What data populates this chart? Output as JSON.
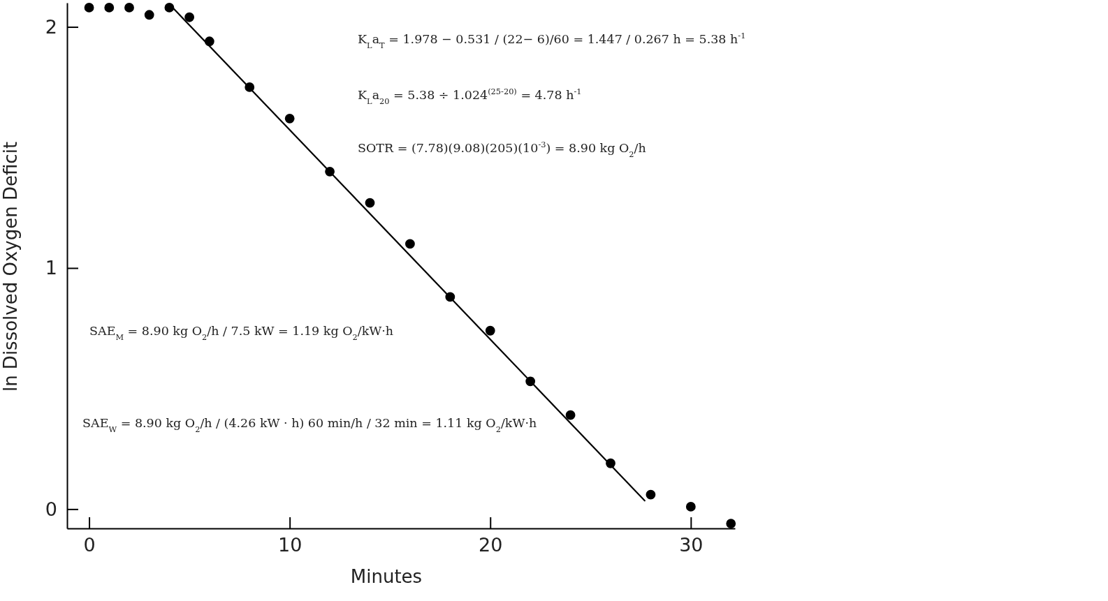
{
  "chart_data": {
    "type": "scatter",
    "xlabel": "Minutes",
    "ylabel": "ln Dissolved Oxygen Deficit",
    "xlim": [
      -1.1,
      32.2
    ],
    "ylim": [
      -0.08,
      2.1
    ],
    "xticks": [
      0,
      10,
      20,
      30
    ],
    "yticks": [
      0,
      1,
      2
    ],
    "series": [
      {
        "marker": "circle",
        "color": "#000000",
        "x": [
          0,
          1,
          2,
          3,
          4,
          5,
          6,
          8,
          10,
          12,
          14,
          16,
          18,
          20,
          22,
          24,
          26,
          28,
          30,
          32
        ],
        "values": [
          2.08,
          2.08,
          2.08,
          2.05,
          2.08,
          2.04,
          1.94,
          1.75,
          1.62,
          1.4,
          1.27,
          1.1,
          0.88,
          0.74,
          0.53,
          0.39,
          0.19,
          0.06,
          0.01,
          -0.06
        ]
      },
      {
        "type": "line",
        "color": "#000000",
        "line_style": "solid",
        "x": [
          4.05,
          27.7
        ],
        "values": [
          2.09,
          0.035
        ]
      }
    ],
    "annotations": [
      "K$_{L}$a$_{T}$ = 1.978 − 0.531 / (22− 6)/60 = 1.447 / 0.267 h = 5.38 h$^{-1}$",
      "K$_{L}$a$_{20}$ = 5.38 ÷ 1.024$^{(25-20)}$ = 4.78 h$^{-1}$",
      "SOTR = (7.78)(9.08)(205)(10$^{-3}$) = 8.90 kg O$_{2}$/h",
      "SAE$_{M}$ = 8.90 kg O$_{2}$/h / 7.5 kW = 1.19 kg O$_{2}$/kW·h",
      "SAE$_{W}$ = 8.90 kg O$_{2}$/h / (4.26 kW · h) 60 min/h / 32 min = 1.11 kg O$_{2}$/kW·h"
    ]
  }
}
